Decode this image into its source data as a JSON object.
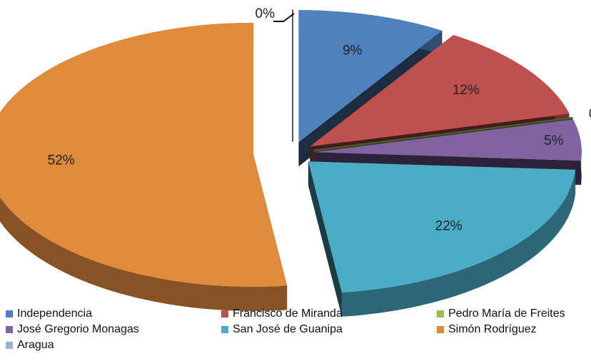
{
  "chart_data": {
    "type": "pie",
    "categories": [
      "Independencia",
      "Francisco de Miranda",
      "Pedro María de Freites",
      "José Gregorio Monagas",
      "San José de Guanipa",
      "Simón Rodríguez",
      "Aragua"
    ],
    "values": [
      9,
      12,
      0,
      5,
      22,
      52,
      0
    ],
    "value_labels": [
      "9%",
      "12%",
      "0%",
      "5%",
      "22%",
      "52%",
      "0%"
    ],
    "colors": [
      "#4f81bd",
      "#c0504d",
      "#9bbb59",
      "#8064a2",
      "#4bacc6",
      "#e08a3c",
      "#95b3d7"
    ],
    "legend": "bottom"
  }
}
